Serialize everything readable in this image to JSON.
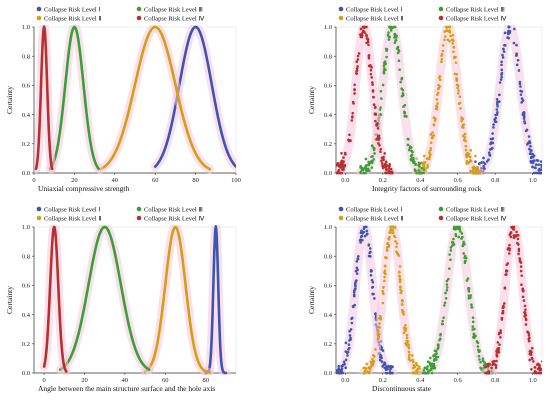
{
  "chart_data": [
    {
      "type": "line",
      "xlabel": "Uniaxial compressive strength",
      "ylabel": "Certainty",
      "xlim": [
        0,
        100
      ],
      "ylim": [
        0,
        1.0
      ],
      "xticks": [
        "0",
        "20",
        "40",
        "60",
        "80",
        "100"
      ],
      "yticks": [
        "0.0",
        "0.2",
        "0.4",
        "0.6",
        "0.8",
        "1.0"
      ],
      "legend": [
        "Collapse Risk Level Ⅰ",
        "Collapse Risk Level Ⅱ",
        "Collapse Risk Level Ⅲ",
        "Collapse Risk Level Ⅳ"
      ],
      "series": [
        {
          "name": "Collapse Risk Level Ⅰ",
          "center": 80,
          "spread": 8,
          "xrange": [
            60,
            100
          ]
        },
        {
          "name": "Collapse Risk Level Ⅱ",
          "center": 60,
          "spread": 10,
          "xrange": [
            33,
            87
          ]
        },
        {
          "name": "Collapse Risk Level Ⅲ",
          "center": 20,
          "spread": 4.5,
          "xrange": [
            8,
            32
          ]
        },
        {
          "name": "Collapse Risk Level Ⅳ",
          "center": 5,
          "spread": 1.5,
          "xrange": [
            1,
            9
          ]
        }
      ]
    },
    {
      "type": "scatter",
      "xlabel": "Integrity factors of surrounding rock",
      "ylabel": "Certainty",
      "xlim": [
        -0.05,
        1.05
      ],
      "ylim": [
        0,
        1.0
      ],
      "xticks": [
        "0.0",
        "0.2",
        "0.4",
        "0.6",
        "0.8",
        "1.0"
      ],
      "yticks": [
        "0.0",
        "0.2",
        "0.4",
        "0.6",
        "0.8",
        "1.0"
      ],
      "legend": [
        "Collapse Risk Level Ⅰ",
        "Collapse Risk Level Ⅱ",
        "Collapse Risk Level Ⅲ",
        "Collapse Risk Level Ⅳ"
      ],
      "series": [
        {
          "name": "Collapse Risk Level Ⅰ",
          "center": 0.88,
          "spread": 0.055
        },
        {
          "name": "Collapse Risk Level Ⅱ",
          "center": 0.55,
          "spread": 0.05
        },
        {
          "name": "Collapse Risk Level Ⅲ",
          "center": 0.25,
          "spread": 0.05
        },
        {
          "name": "Collapse Risk Level Ⅳ",
          "center": 0.1,
          "spread": 0.045
        }
      ]
    },
    {
      "type": "line",
      "xlabel": "Angle between the main structure surface and the hole axis",
      "ylabel": "Certainty",
      "xlim": [
        -5,
        95
      ],
      "ylim": [
        0,
        1.0
      ],
      "xticks": [
        "0",
        "20",
        "40",
        "60",
        "80"
      ],
      "yticks": [
        "0.0",
        "0.2",
        "0.4",
        "0.6",
        "0.8",
        "1.0"
      ],
      "legend": [
        "Collapse Risk Level Ⅰ",
        "Collapse Risk Level Ⅱ",
        "Collapse Risk Level Ⅲ",
        "Collapse Risk Level Ⅳ"
      ],
      "series": [
        {
          "name": "Collapse Risk Level Ⅰ",
          "center": 85,
          "spread": 1.2,
          "xrange": [
            80,
            90
          ]
        },
        {
          "name": "Collapse Risk Level Ⅱ",
          "center": 65,
          "spread": 5,
          "xrange": [
            50,
            82
          ]
        },
        {
          "name": "Collapse Risk Level Ⅲ",
          "center": 30,
          "spread": 8,
          "xrange": [
            8,
            52
          ]
        },
        {
          "name": "Collapse Risk Level Ⅳ",
          "center": 5,
          "spread": 2,
          "xrange": [
            0,
            11
          ]
        }
      ]
    },
    {
      "type": "scatter",
      "xlabel": "Discontinuous state",
      "ylabel": "Certainty",
      "xlim": [
        -0.05,
        1.05
      ],
      "ylim": [
        0,
        1.0
      ],
      "xticks": [
        "0.0",
        "0.2",
        "0.4",
        "0.6",
        "0.8",
        "1.0"
      ],
      "yticks": [
        "0.0",
        "0.2",
        "0.4",
        "0.6",
        "0.8",
        "1.0"
      ],
      "legend": [
        "Collapse Risk Level Ⅰ",
        "Collapse Risk Level Ⅱ",
        "Collapse Risk Level Ⅲ",
        "Collapse Risk Level Ⅳ"
      ],
      "series": [
        {
          "name": "Collapse Risk Level Ⅰ",
          "center": 0.1,
          "spread": 0.045
        },
        {
          "name": "Collapse Risk Level Ⅱ",
          "center": 0.25,
          "spread": 0.045
        },
        {
          "name": "Collapse Risk Level Ⅲ",
          "center": 0.6,
          "spread": 0.055
        },
        {
          "name": "Collapse Risk Level Ⅳ",
          "center": 0.9,
          "spread": 0.045
        }
      ]
    }
  ],
  "colors": {
    "level1": "#3b55b0",
    "level2": "#d4a012",
    "level3": "#3aa035",
    "level4": "#b8302e",
    "halo": "#f6c6df"
  }
}
